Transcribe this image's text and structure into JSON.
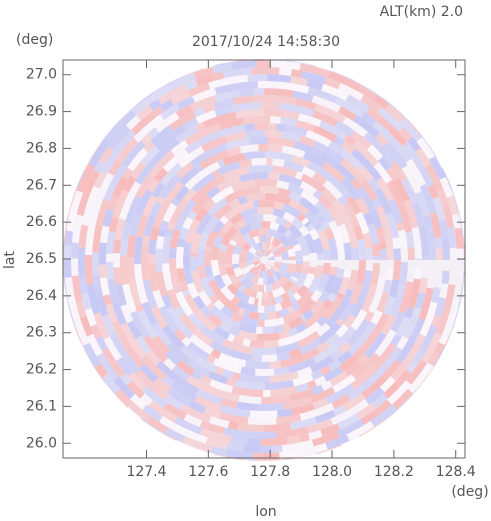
{
  "chart_data": {
    "type": "radar-field",
    "title": "2017/10/24 14:58:30",
    "annotation": "ALT(km) 2.0",
    "x_label": "lon",
    "y_label": "lat",
    "x_unit": "(deg)",
    "y_unit": "(deg)",
    "xlim": [
      127.13,
      128.43
    ],
    "ylim": [
      25.96,
      27.04
    ],
    "xticks": [
      {
        "value": 127.4,
        "label": "127.4"
      },
      {
        "value": 127.6,
        "label": "127.6"
      },
      {
        "value": 127.8,
        "label": "127.8"
      },
      {
        "value": 128.0,
        "label": "128.0"
      },
      {
        "value": 128.2,
        "label": "128.2"
      },
      {
        "value": 128.4,
        "label": "128.4"
      }
    ],
    "yticks": [
      {
        "value": 26.0,
        "label": "26.0"
      },
      {
        "value": 26.1,
        "label": "26.1"
      },
      {
        "value": 26.2,
        "label": "26.2"
      },
      {
        "value": 26.3,
        "label": "26.3"
      },
      {
        "value": 26.4,
        "label": "26.4"
      },
      {
        "value": 26.5,
        "label": "26.5"
      },
      {
        "value": 26.6,
        "label": "26.6"
      },
      {
        "value": 26.7,
        "label": "26.7"
      },
      {
        "value": 26.8,
        "label": "26.8"
      },
      {
        "value": 26.9,
        "label": "26.9"
      },
      {
        "value": 27.0,
        "label": "27.0"
      }
    ]
  }
}
